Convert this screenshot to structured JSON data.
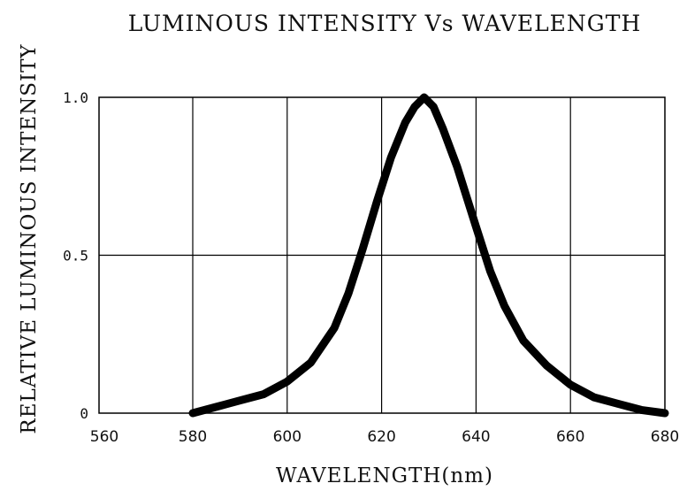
{
  "chart_data": {
    "type": "line",
    "title": "LUMINOUS INTENSITY Vs WAVELENGTH",
    "xlabel": "WAVELENGTH(nm)",
    "ylabel": "RELATIVE LUMINOUS INTENSITY",
    "xlim": [
      560,
      680
    ],
    "ylim": [
      0,
      1.0
    ],
    "x_ticks": [
      "560",
      "580",
      "600",
      "620",
      "640",
      "660",
      "680"
    ],
    "y_ticks": [
      "0",
      "0.5",
      "1.0"
    ],
    "grid": true,
    "series": [
      {
        "color": "#000000",
        "points": [
          [
            580,
            0.0
          ],
          [
            585,
            0.02
          ],
          [
            590,
            0.04
          ],
          [
            595,
            0.06
          ],
          [
            600,
            0.1
          ],
          [
            605,
            0.16
          ],
          [
            610,
            0.27
          ],
          [
            613,
            0.38
          ],
          [
            616,
            0.52
          ],
          [
            619,
            0.67
          ],
          [
            622,
            0.81
          ],
          [
            625,
            0.92
          ],
          [
            627,
            0.97
          ],
          [
            629,
            1.0
          ],
          [
            631,
            0.97
          ],
          [
            633,
            0.9
          ],
          [
            636,
            0.78
          ],
          [
            640,
            0.59
          ],
          [
            643,
            0.45
          ],
          [
            646,
            0.34
          ],
          [
            650,
            0.23
          ],
          [
            655,
            0.15
          ],
          [
            660,
            0.09
          ],
          [
            665,
            0.05
          ],
          [
            670,
            0.03
          ],
          [
            675,
            0.01
          ],
          [
            680,
            0.0
          ]
        ]
      }
    ]
  }
}
